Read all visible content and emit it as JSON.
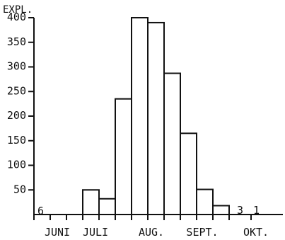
{
  "chart_data": {
    "type": "bar",
    "ylabel": "EXPL.",
    "xlabel": "",
    "ylim": [
      0,
      400
    ],
    "yticks": [
      50,
      100,
      150,
      200,
      250,
      300,
      350,
      400
    ],
    "month_labels": [
      "JUNI",
      "JULI",
      "AUG.",
      "SEPT.",
      "OKT."
    ],
    "values": [
      6,
      13,
      11,
      50,
      32,
      235,
      400,
      390,
      287,
      165,
      51,
      18,
      3,
      1
    ],
    "value_labels": [
      {
        "index": 0,
        "text": "6"
      },
      {
        "index": 12,
        "text": "3"
      },
      {
        "index": 13,
        "text": "1"
      }
    ]
  }
}
